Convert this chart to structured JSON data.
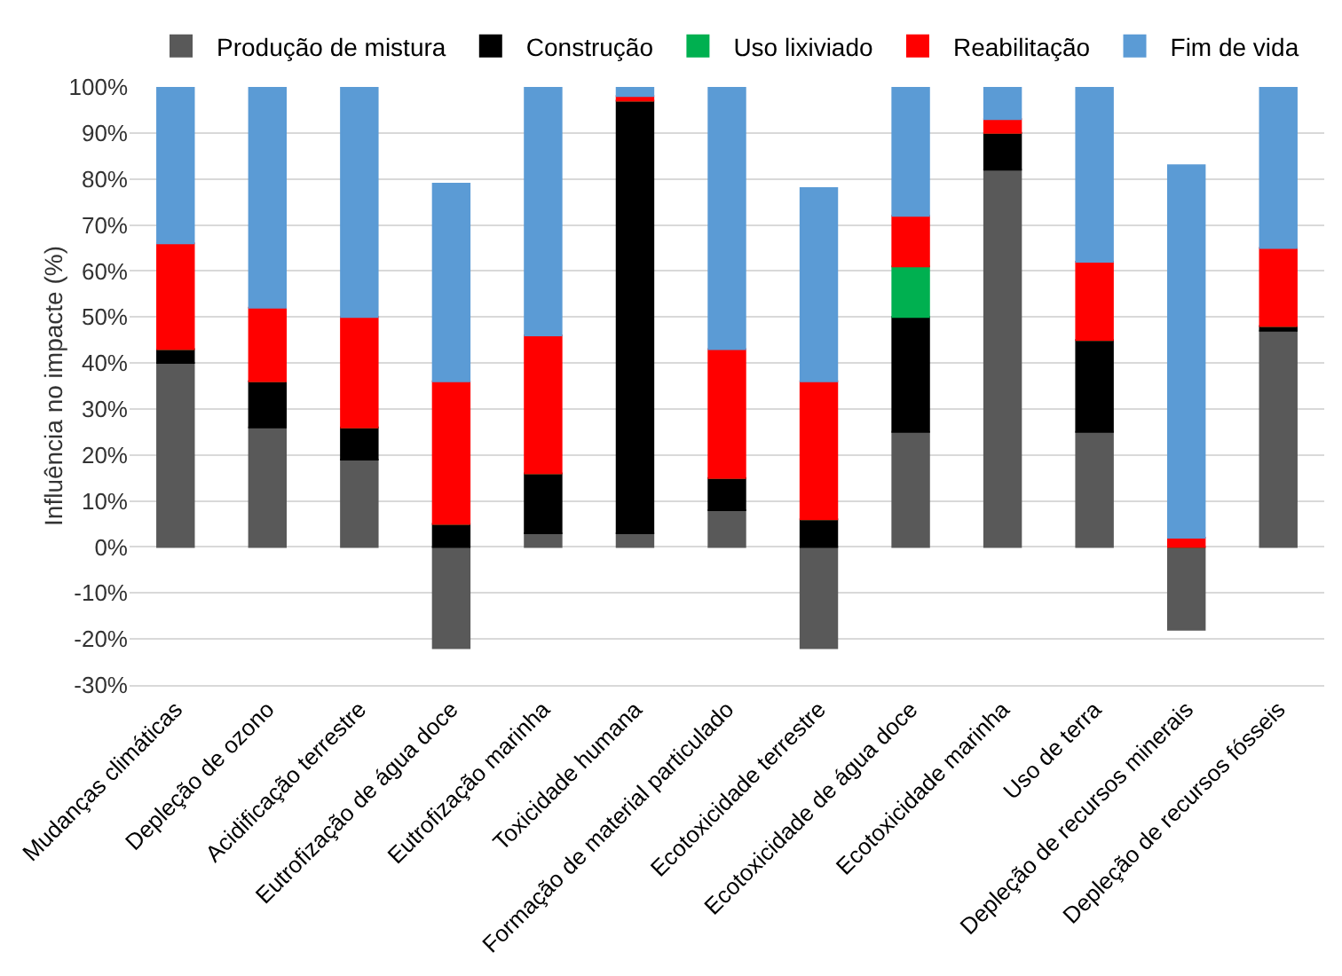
{
  "chart_data": {
    "type": "bar",
    "stacked": true,
    "ylabel": "Influência no impacte (%)",
    "categories": [
      "Mudanças climáticas",
      "Depleção de ozono",
      "Acidificação terrestre",
      "Eutrofização de água doce",
      "Eutrofização marinha",
      "Toxicidade humana",
      "Formação de material particulado",
      "Ecotoxicidade terrestre",
      "Ecotoxicidade de água doce",
      "Ecotoxicidade marinha",
      "Uso de terra",
      "Depleção de recursos minerais",
      "Depleção de recursos fósseis"
    ],
    "series": [
      {
        "name": "Produção de mistura",
        "color": "#595959",
        "values": [
          40,
          26,
          19,
          -22,
          3,
          3,
          8,
          -22,
          25,
          82,
          25,
          -18,
          47
        ]
      },
      {
        "name": "Construção",
        "color": "#000000",
        "values": [
          3,
          10,
          7,
          5,
          13,
          94,
          7,
          6,
          25,
          8,
          20,
          0,
          1
        ]
      },
      {
        "name": "Uso lixiviado",
        "color": "#00b050",
        "values": [
          0,
          0,
          0,
          0,
          0,
          0,
          0,
          0,
          11,
          0,
          0,
          0,
          0
        ]
      },
      {
        "name": "Reabilitação",
        "color": "#ff0000",
        "values": [
          23,
          16,
          24,
          31,
          30,
          1,
          28,
          30,
          11,
          3,
          17,
          2,
          17
        ]
      },
      {
        "name": "Fim de vida",
        "color": "#5b9bd5",
        "values": [
          34,
          48,
          50,
          43,
          54,
          2,
          57,
          42,
          28,
          7,
          38,
          81,
          35
        ]
      }
    ],
    "ylim": [
      -30,
      100
    ],
    "yticks": [
      {
        "value": -30,
        "label": "-30%"
      },
      {
        "value": -20,
        "label": "-20%"
      },
      {
        "value": -10,
        "label": "-10%"
      },
      {
        "value": 0,
        "label": "0%"
      },
      {
        "value": 10,
        "label": "10%"
      },
      {
        "value": 20,
        "label": "20%"
      },
      {
        "value": 30,
        "label": "30%"
      },
      {
        "value": 40,
        "label": "40%"
      },
      {
        "value": 50,
        "label": "50%"
      },
      {
        "value": 60,
        "label": "60%"
      },
      {
        "value": 70,
        "label": "70%"
      },
      {
        "value": 80,
        "label": "80%"
      },
      {
        "value": 90,
        "label": "90%"
      },
      {
        "value": 100,
        "label": "100%"
      }
    ],
    "grid": "y",
    "legend": "top"
  }
}
